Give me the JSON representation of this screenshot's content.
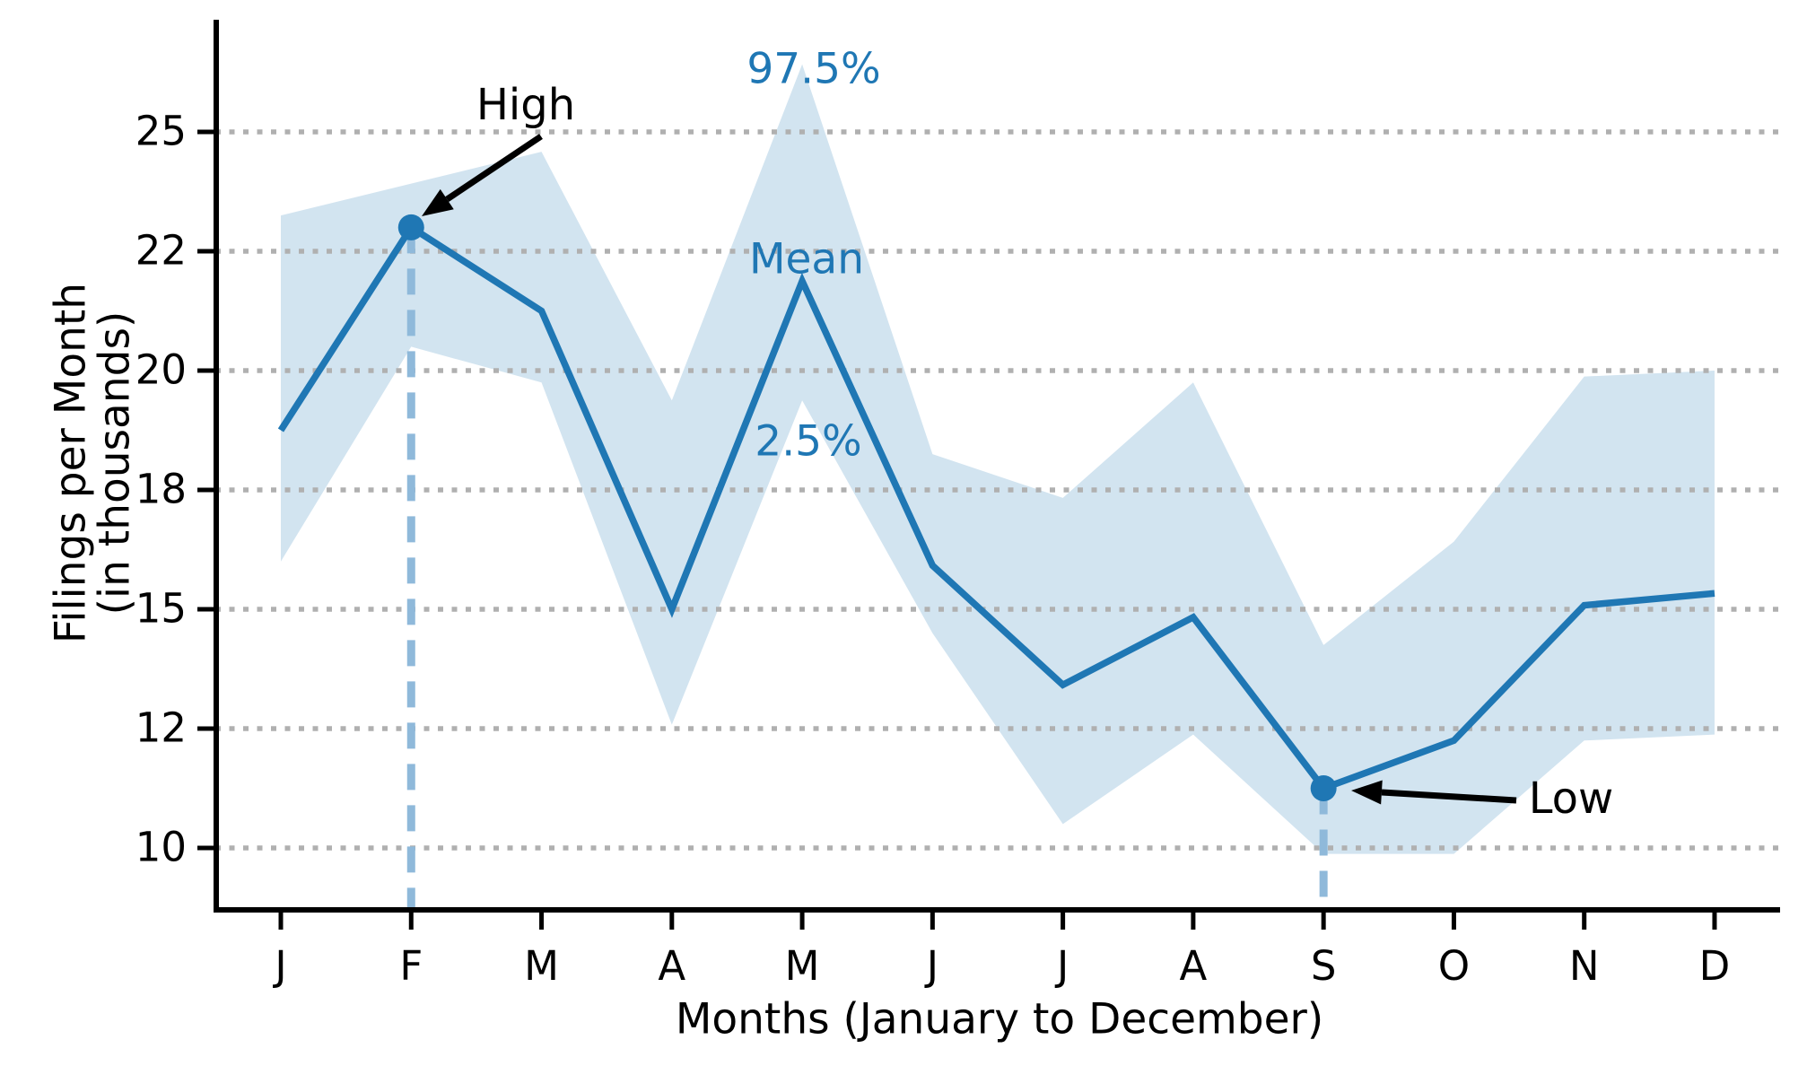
{
  "chart_data": {
    "type": "line",
    "title": "",
    "xlabel": "Months (January to December)",
    "ylabel_line1": "Filings per Month",
    "ylabel_line2": "(in thousands)",
    "x_tick_labels": [
      "J",
      "F",
      "M",
      "A",
      "M",
      "J",
      "J",
      "A",
      "S",
      "O",
      "N",
      "D"
    ],
    "y_tick_labels": [
      "25",
      "22",
      "20",
      "18",
      "15",
      "12",
      "10"
    ],
    "y_tick_values": [
      25,
      22,
      20,
      18,
      15,
      12,
      10
    ],
    "y_ticks_evenly_spaced": true,
    "grid": "dotted-horizontal",
    "legend_position": "none",
    "series": [
      {
        "name": "Mean",
        "values": [
          19.0,
          22.6,
          21.0,
          15.0,
          21.5,
          16.1,
          13.1,
          14.8,
          11.0,
          11.8,
          15.1,
          15.4
        ]
      },
      {
        "name": "2.5%",
        "values": [
          16.2,
          20.4,
          19.8,
          12.1,
          19.5,
          14.4,
          10.4,
          11.9,
          9.9,
          9.9,
          11.8,
          11.9
        ]
      },
      {
        "name": "97.5%",
        "values": [
          22.9,
          23.7,
          24.5,
          19.5,
          26.7,
          18.6,
          17.8,
          19.8,
          14.1,
          16.7,
          19.9,
          20.0
        ]
      }
    ],
    "band": {
      "lower_series": "2.5%",
      "upper_series": "97.5%"
    },
    "markers": [
      {
        "label": "High",
        "month": "F",
        "month_index": 1,
        "value": 22.6,
        "dashed_line_to_axis": true
      },
      {
        "label": "Low",
        "month": "S",
        "month_index": 8,
        "value": 11.0,
        "dashed_line_to_axis": true
      }
    ]
  },
  "labels": {
    "high": "High",
    "low": "Low",
    "upper_band": "97.5%",
    "mean": "Mean",
    "lower_band": "2.5%"
  },
  "axis": {
    "x_label": "Months (January to December)",
    "y_label_line1": "Filings per Month",
    "y_label_line2": "(in thousands)"
  },
  "colors": {
    "line": "#1f77b4",
    "band": "#d2e4f0",
    "dashed": "#8fb9da",
    "grid": "#b0b0b0",
    "axis": "#000000",
    "annotation_blue": "#1f77b4",
    "annotation_black": "#000000",
    "background": "#ffffff"
  }
}
